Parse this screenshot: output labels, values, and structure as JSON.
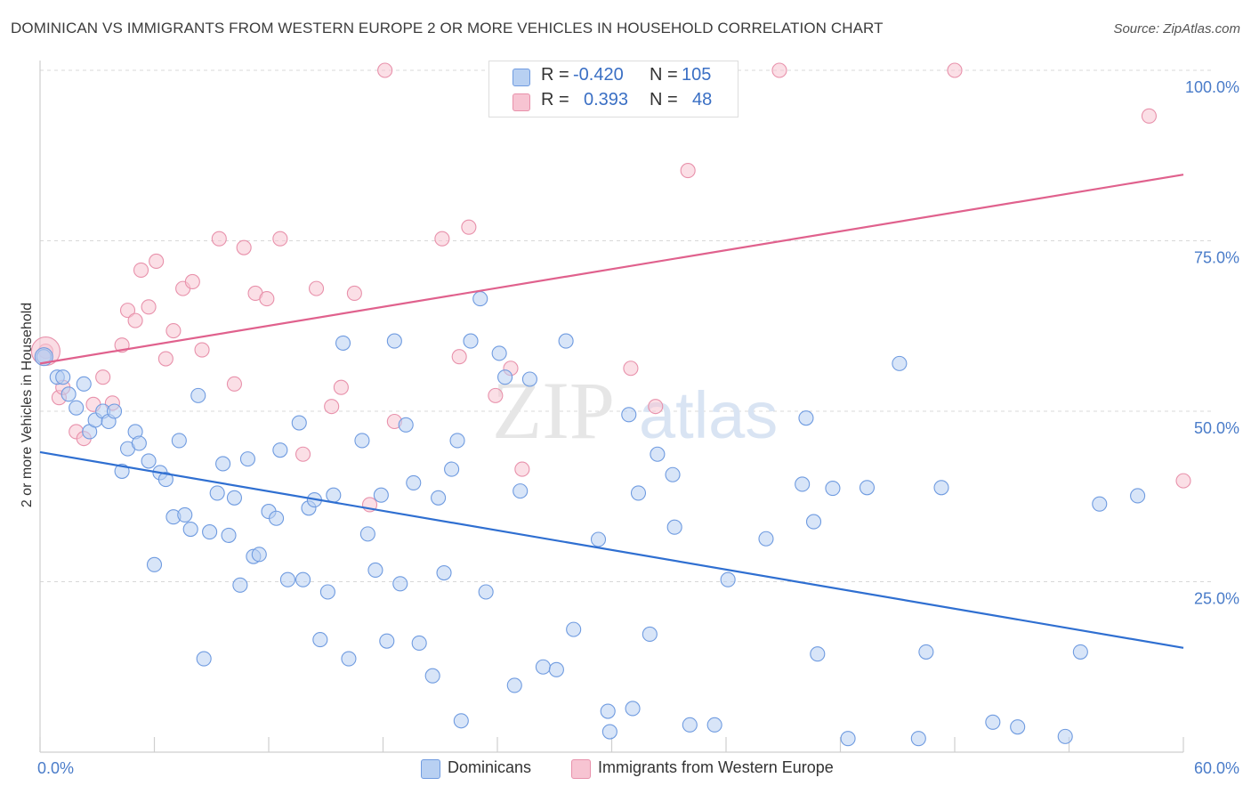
{
  "title": "DOMINICAN VS IMMIGRANTS FROM WESTERN EUROPE 2 OR MORE VEHICLES IN HOUSEHOLD CORRELATION CHART",
  "source": "Source: ZipAtlas.com",
  "watermark": {
    "zip": "ZIP",
    "atlas": "atlas"
  },
  "legend_top": {
    "rows": [
      {
        "r_label": "R =",
        "r_value": "-0.420",
        "n_label": "N =",
        "n_value": "105"
      },
      {
        "r_label": "R =",
        "r_value": "0.393",
        "n_label": "N =",
        "n_value": "48"
      }
    ]
  },
  "legend_bottom": {
    "items": [
      {
        "label": "Dominicans"
      },
      {
        "label": "Immigrants from Western Europe"
      }
    ]
  },
  "colors": {
    "blue_fill": "#b8d0f2",
    "blue_stroke": "#6f9be0",
    "blue_line": "#2f6fd1",
    "pink_fill": "#f7c4d2",
    "pink_stroke": "#e891ab",
    "pink_line": "#e0618d",
    "grid": "#d8d8d8",
    "tick_text": "#4a7cc9"
  },
  "chart_data": {
    "type": "scatter",
    "title": "DOMINICAN VS IMMIGRANTS FROM WESTERN EUROPE 2 OR MORE VEHICLES IN HOUSEHOLD CORRELATION CHART",
    "xlabel": "",
    "ylabel": "2 or more Vehicles in Household",
    "xlim": [
      0,
      60
    ],
    "ylim": [
      0,
      100
    ],
    "x_tick_labels": [
      "0.0%",
      "60.0%"
    ],
    "y_tick_labels": [
      "25.0%",
      "50.0%",
      "75.0%",
      "100.0%"
    ],
    "y_ticks": [
      25,
      50,
      75,
      100
    ],
    "grid": true,
    "legend_position": "top-center",
    "series": [
      {
        "name": "Dominicans",
        "color": "#6f9be0",
        "r": -0.42,
        "n": 105,
        "trend": {
          "x": [
            0,
            60
          ],
          "y": [
            44.0,
            15.3
          ]
        },
        "points": [
          [
            0.2,
            58.0
          ],
          [
            0.9,
            55.0
          ],
          [
            1.2,
            55.0
          ],
          [
            1.5,
            52.5
          ],
          [
            1.9,
            50.5
          ],
          [
            2.3,
            54.0
          ],
          [
            2.6,
            47.0
          ],
          [
            2.9,
            48.7
          ],
          [
            3.3,
            50.0
          ],
          [
            3.6,
            48.5
          ],
          [
            3.9,
            50.0
          ],
          [
            4.3,
            41.2
          ],
          [
            4.6,
            44.5
          ],
          [
            5.0,
            47.0
          ],
          [
            5.2,
            45.3
          ],
          [
            5.7,
            42.7
          ],
          [
            6.0,
            27.5
          ],
          [
            6.3,
            41.0
          ],
          [
            6.6,
            40.0
          ],
          [
            7.0,
            34.5
          ],
          [
            7.3,
            45.7
          ],
          [
            7.6,
            34.8
          ],
          [
            7.9,
            32.7
          ],
          [
            8.3,
            52.3
          ],
          [
            8.6,
            13.7
          ],
          [
            8.9,
            32.3
          ],
          [
            9.3,
            38.0
          ],
          [
            9.6,
            42.3
          ],
          [
            9.9,
            31.8
          ],
          [
            10.2,
            37.3
          ],
          [
            10.5,
            24.5
          ],
          [
            10.9,
            43.0
          ],
          [
            11.2,
            28.7
          ],
          [
            11.5,
            29.0
          ],
          [
            12.0,
            35.3
          ],
          [
            12.4,
            34.3
          ],
          [
            12.6,
            44.3
          ],
          [
            13.0,
            25.3
          ],
          [
            13.6,
            48.3
          ],
          [
            13.8,
            25.3
          ],
          [
            14.1,
            35.8
          ],
          [
            14.4,
            37.0
          ],
          [
            14.7,
            16.5
          ],
          [
            15.1,
            23.5
          ],
          [
            15.4,
            37.7
          ],
          [
            15.9,
            60.0
          ],
          [
            16.2,
            13.7
          ],
          [
            16.9,
            45.7
          ],
          [
            17.2,
            32.0
          ],
          [
            17.6,
            26.7
          ],
          [
            17.9,
            37.7
          ],
          [
            18.2,
            16.3
          ],
          [
            18.6,
            60.3
          ],
          [
            18.9,
            24.7
          ],
          [
            19.2,
            48.0
          ],
          [
            19.6,
            39.5
          ],
          [
            19.9,
            16.0
          ],
          [
            20.6,
            11.2
          ],
          [
            20.9,
            37.3
          ],
          [
            21.2,
            26.3
          ],
          [
            21.6,
            41.5
          ],
          [
            21.9,
            45.7
          ],
          [
            22.1,
            4.6
          ],
          [
            22.6,
            60.3
          ],
          [
            23.1,
            66.5
          ],
          [
            23.4,
            23.5
          ],
          [
            24.1,
            58.5
          ],
          [
            24.4,
            55.0
          ],
          [
            24.9,
            9.8
          ],
          [
            25.2,
            38.3
          ],
          [
            25.7,
            54.7
          ],
          [
            26.4,
            12.5
          ],
          [
            27.1,
            12.1
          ],
          [
            27.6,
            60.3
          ],
          [
            28.0,
            18.0
          ],
          [
            29.3,
            31.2
          ],
          [
            29.8,
            6.0
          ],
          [
            29.9,
            3.0
          ],
          [
            30.9,
            49.5
          ],
          [
            31.1,
            6.4
          ],
          [
            31.4,
            38.0
          ],
          [
            32.0,
            17.3
          ],
          [
            32.4,
            43.7
          ],
          [
            33.2,
            40.7
          ],
          [
            33.3,
            33.0
          ],
          [
            34.1,
            4.0
          ],
          [
            35.4,
            4.0
          ],
          [
            36.1,
            25.3
          ],
          [
            38.1,
            31.3
          ],
          [
            40.0,
            39.3
          ],
          [
            40.2,
            49.0
          ],
          [
            40.6,
            33.8
          ],
          [
            40.8,
            14.4
          ],
          [
            41.6,
            38.7
          ],
          [
            42.4,
            2.0
          ],
          [
            43.4,
            38.8
          ],
          [
            45.1,
            57.0
          ],
          [
            46.1,
            2.0
          ],
          [
            46.5,
            14.7
          ],
          [
            47.3,
            38.8
          ],
          [
            50.0,
            4.4
          ],
          [
            51.3,
            3.7
          ],
          [
            53.8,
            2.3
          ],
          [
            54.6,
            14.7
          ],
          [
            55.6,
            36.4
          ],
          [
            57.6,
            37.6
          ]
        ]
      },
      {
        "name": "Immigrants from Western Europe",
        "color": "#e891ab",
        "r": 0.393,
        "n": 48,
        "trend": {
          "x": [
            0,
            60
          ],
          "y": [
            57.0,
            84.7
          ]
        },
        "points": [
          [
            0.3,
            58.8
          ],
          [
            1.0,
            52.0
          ],
          [
            1.2,
            53.5
          ],
          [
            1.9,
            47.0
          ],
          [
            2.3,
            46.0
          ],
          [
            2.8,
            51.0
          ],
          [
            3.3,
            55.0
          ],
          [
            3.8,
            51.2
          ],
          [
            4.3,
            59.7
          ],
          [
            4.6,
            64.8
          ],
          [
            5.0,
            63.3
          ],
          [
            5.3,
            70.7
          ],
          [
            5.7,
            65.3
          ],
          [
            6.1,
            72.0
          ],
          [
            6.6,
            57.7
          ],
          [
            7.0,
            61.8
          ],
          [
            7.5,
            68.0
          ],
          [
            8.0,
            69.0
          ],
          [
            8.5,
            59.0
          ],
          [
            9.4,
            75.3
          ],
          [
            10.2,
            54.0
          ],
          [
            10.7,
            74.0
          ],
          [
            11.3,
            67.3
          ],
          [
            11.9,
            66.5
          ],
          [
            12.6,
            75.3
          ],
          [
            13.8,
            43.7
          ],
          [
            14.5,
            68.0
          ],
          [
            15.3,
            50.7
          ],
          [
            15.8,
            53.5
          ],
          [
            16.5,
            67.3
          ],
          [
            17.3,
            36.3
          ],
          [
            18.1,
            100.0
          ],
          [
            18.6,
            48.5
          ],
          [
            21.1,
            75.3
          ],
          [
            22.0,
            58.0
          ],
          [
            22.5,
            77.0
          ],
          [
            23.9,
            52.3
          ],
          [
            24.7,
            56.3
          ],
          [
            25.3,
            41.5
          ],
          [
            31.0,
            56.3
          ],
          [
            32.3,
            50.7
          ],
          [
            33.0,
            100.0
          ],
          [
            33.3,
            100.0
          ],
          [
            34.0,
            85.3
          ],
          [
            38.8,
            100.0
          ],
          [
            48.0,
            100.0
          ],
          [
            58.2,
            93.3
          ],
          [
            60.0,
            39.8
          ]
        ]
      }
    ]
  }
}
